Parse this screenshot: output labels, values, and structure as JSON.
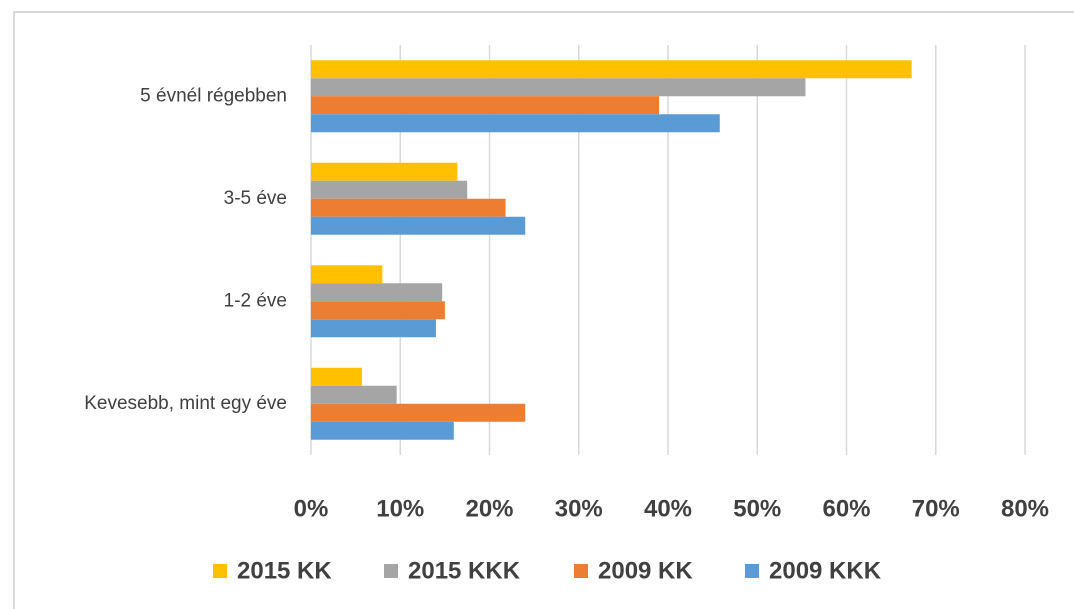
{
  "chart_data": {
    "type": "bar",
    "orientation": "horizontal",
    "categories": [
      "5 évnél régebben",
      "3-5 éve",
      "1-2 éve",
      "Kevesebb, mint egy éve"
    ],
    "series": [
      {
        "name": "2015 KK",
        "color": "#ffc000",
        "values": [
          67.3,
          16.4,
          8,
          5.7
        ]
      },
      {
        "name": "2015 KKK",
        "color": "#a5a5a5",
        "values": [
          55.4,
          17.5,
          14.7,
          9.6
        ]
      },
      {
        "name": "2009 KK",
        "color": "#ed7d31",
        "values": [
          39,
          21.8,
          15,
          24
        ]
      },
      {
        "name": "2009 KKK",
        "color": "#5b9bd5",
        "values": [
          45.8,
          24,
          14,
          16
        ]
      }
    ],
    "xlim": [
      0,
      80
    ],
    "xticks": [
      {
        "value": 0,
        "label": "0%"
      },
      {
        "value": 10,
        "label": "10%"
      },
      {
        "value": 20,
        "label": "20%"
      },
      {
        "value": 30,
        "label": "30%"
      },
      {
        "value": 40,
        "label": "40%"
      },
      {
        "value": 50,
        "label": "50%"
      },
      {
        "value": 60,
        "label": "60%"
      },
      {
        "value": 70,
        "label": "70%"
      },
      {
        "value": 80,
        "label": "80%"
      }
    ],
    "grid": true,
    "legend": "bottom"
  }
}
